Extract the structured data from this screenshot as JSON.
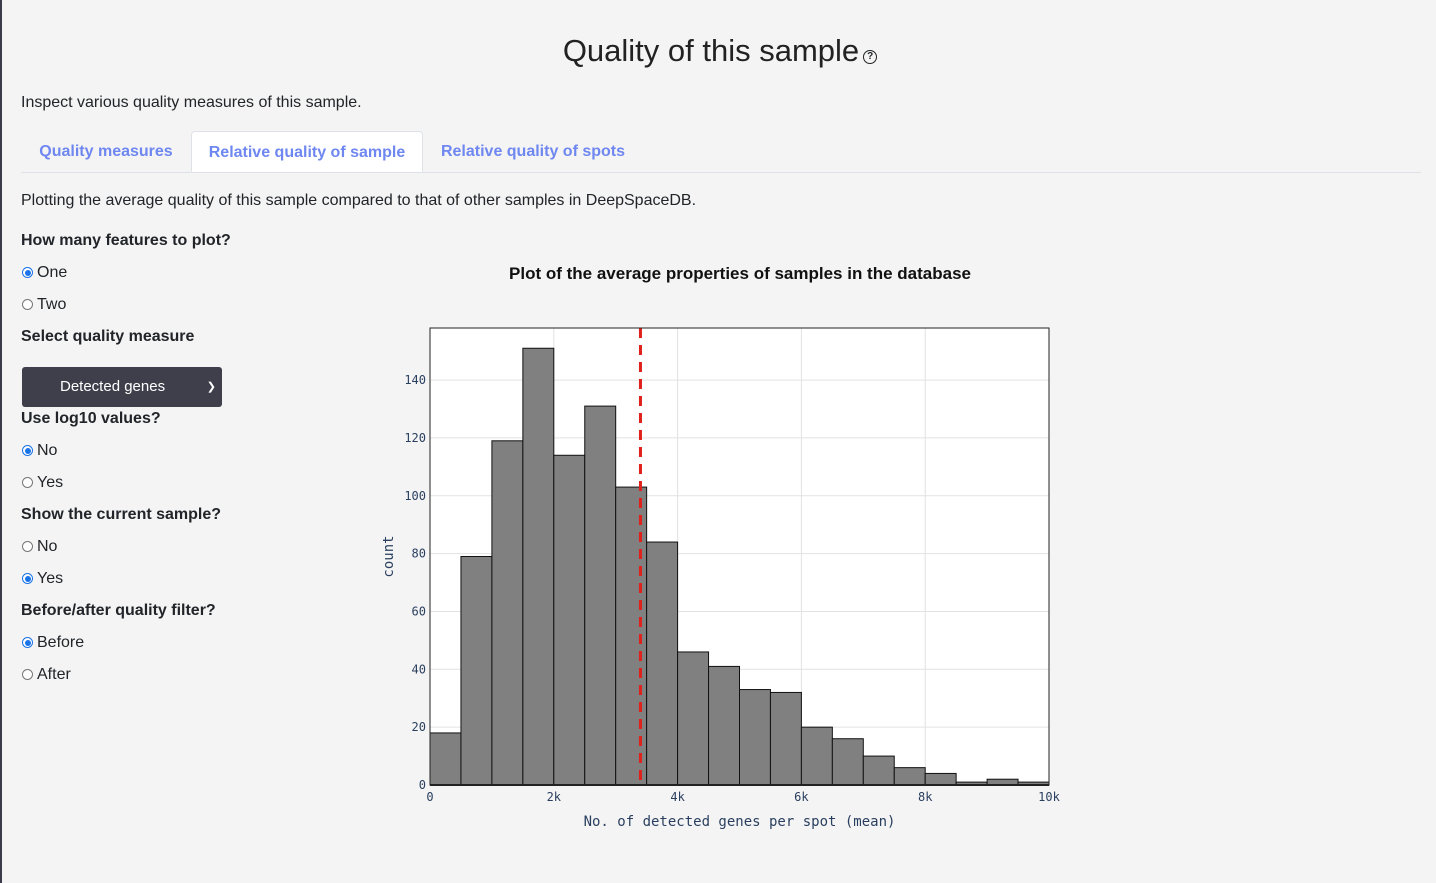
{
  "page": {
    "title": "Quality of this sample",
    "intro": "Inspect various quality measures of this sample.",
    "tabs": [
      {
        "label": "Quality measures",
        "active": false
      },
      {
        "label": "Relative quality of sample",
        "active": true
      },
      {
        "label": "Relative quality of spots",
        "active": false
      }
    ],
    "description": "Plotting the average quality of this sample compared to that of other samples in DeepSpaceDB."
  },
  "controls": {
    "features_label": "How many features to plot?",
    "features_options": [
      {
        "label": "One",
        "checked": true
      },
      {
        "label": "Two",
        "checked": false
      }
    ],
    "measure_label": "Select quality measure",
    "measure_value": "Detected genes",
    "log_label": "Use log10 values?",
    "log_options": [
      {
        "label": "No",
        "checked": true
      },
      {
        "label": "Yes",
        "checked": false
      }
    ],
    "current_label": "Show the current sample?",
    "current_options": [
      {
        "label": "No",
        "checked": false
      },
      {
        "label": "Yes",
        "checked": true
      }
    ],
    "filter_label": "Before/after quality filter?",
    "filter_options": [
      {
        "label": "Before",
        "checked": true
      },
      {
        "label": "After",
        "checked": false
      }
    ]
  },
  "chart_data": {
    "type": "bar",
    "title": "Plot of the average properties of samples in the database",
    "xlabel": "No. of detected genes per spot (mean)",
    "ylabel": "count",
    "bin_width": 500,
    "bin_starts": [
      0,
      500,
      1000,
      1500,
      2000,
      2500,
      3000,
      3500,
      4000,
      4500,
      5000,
      5500,
      6000,
      6500,
      7000,
      7500,
      8000,
      8500,
      9000,
      9500
    ],
    "values": [
      18,
      79,
      119,
      151,
      114,
      131,
      103,
      84,
      46,
      41,
      33,
      32,
      20,
      16,
      10,
      6,
      4,
      1,
      2,
      1
    ],
    "xlim": [
      0,
      10000
    ],
    "ylim": [
      0,
      158
    ],
    "xticks": [
      {
        "v": 0,
        "label": "0"
      },
      {
        "v": 2000,
        "label": "2k"
      },
      {
        "v": 4000,
        "label": "4k"
      },
      {
        "v": 6000,
        "label": "6k"
      },
      {
        "v": 8000,
        "label": "8k"
      },
      {
        "v": 10000,
        "label": "10k"
      }
    ],
    "yticks": [
      {
        "v": 0,
        "label": "0"
      },
      {
        "v": 20,
        "label": "20"
      },
      {
        "v": 40,
        "label": "40"
      },
      {
        "v": 60,
        "label": "60"
      },
      {
        "v": 80,
        "label": "80"
      },
      {
        "v": 100,
        "label": "100"
      },
      {
        "v": 120,
        "label": "120"
      },
      {
        "v": 140,
        "label": "140"
      }
    ],
    "current_sample_x": 3400,
    "bar_color": "#808080",
    "line_color": "#e0201b",
    "grid": true
  }
}
